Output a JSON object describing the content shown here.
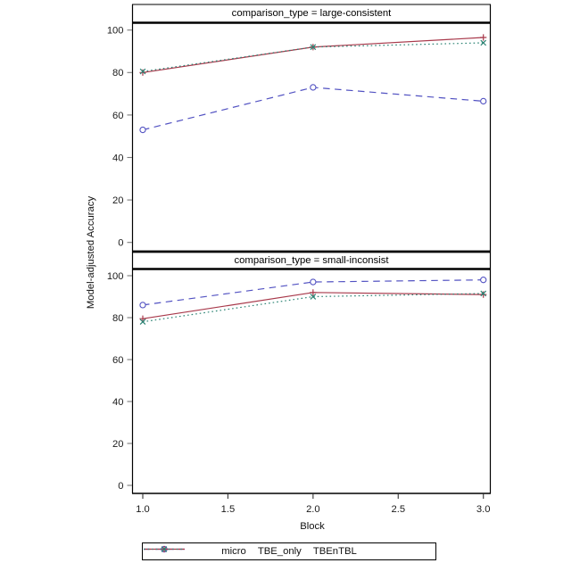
{
  "chart_data": {
    "type": "line",
    "title": "",
    "xlabel": "Block",
    "ylabel": "Model-adjusted Accuracy",
    "xlim": [
      1,
      3
    ],
    "ylim": [
      0,
      100
    ],
    "grid": false,
    "legend_position": "bottom",
    "x": [
      1,
      2,
      3
    ],
    "x_ticks": [
      1.0,
      1.5,
      2.0,
      2.5,
      3.0
    ],
    "x_tick_labels": [
      "1.0",
      "1.5",
      "2.0",
      "2.5",
      "3.0"
    ],
    "y_ticks": [
      0,
      20,
      40,
      60,
      80,
      100
    ],
    "y_tick_labels": [
      "0",
      "20",
      "40",
      "60",
      "80",
      "100"
    ],
    "panels": [
      {
        "title": "comparison_type = large-consistent",
        "series": [
          {
            "name": "micro",
            "values": [
              53,
              73,
              66.5
            ]
          },
          {
            "name": "TBE_only",
            "values": [
              80,
              92,
              96.5
            ]
          },
          {
            "name": "TBEnTBL",
            "values": [
              80.5,
              92,
              94
            ]
          }
        ]
      },
      {
        "title": "comparison_type = small-inconsist",
        "series": [
          {
            "name": "micro",
            "values": [
              86,
              97,
              98
            ]
          },
          {
            "name": "TBE_only",
            "values": [
              79.5,
              92,
              91
            ]
          },
          {
            "name": "TBEnTBL",
            "values": [
              78,
              90,
              91.5
            ]
          }
        ]
      }
    ],
    "legend": [
      {
        "label": "micro",
        "color": "#5252c2",
        "line_style": "dashed",
        "marker": "circle"
      },
      {
        "label": "TBE_only",
        "color": "#a8394b",
        "line_style": "solid",
        "marker": "plus"
      },
      {
        "label": "TBEnTBL",
        "color": "#2c8374",
        "line_style": "dotted",
        "marker": "x"
      }
    ]
  }
}
